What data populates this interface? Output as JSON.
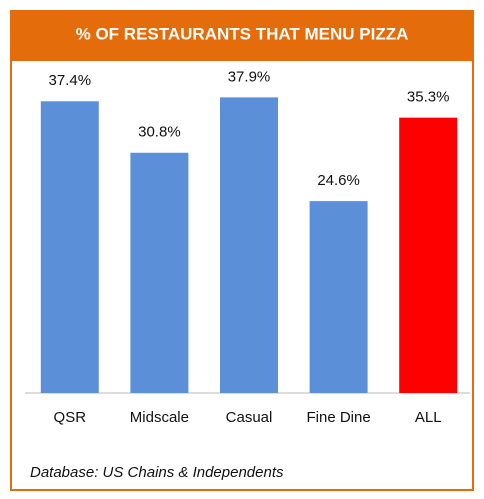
{
  "chart_data": {
    "type": "bar",
    "title": "% OF RESTAURANTS THAT MENU PIZZA",
    "categories": [
      "QSR",
      "Midscale",
      "Casual",
      "Fine Dine",
      "ALL"
    ],
    "values": [
      37.4,
      30.8,
      37.9,
      24.6,
      35.3
    ],
    "value_labels": [
      "37.4%",
      "30.8%",
      "37.9%",
      "24.6%",
      "35.3%"
    ],
    "colors": [
      "#5b8fd8",
      "#5b8fd8",
      "#5b8fd8",
      "#5b8fd8",
      "#ff0000"
    ],
    "ylim": [
      0,
      40
    ],
    "footnote": "Database: US Chains & Independents"
  }
}
